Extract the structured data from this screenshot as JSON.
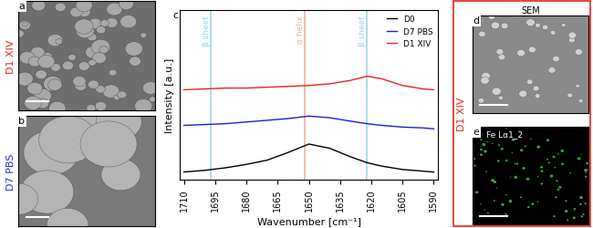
{
  "image_panels": [
    {
      "label": "a",
      "row_label": "D1 XIV",
      "row_label_color": "#e8231f"
    },
    {
      "label": "b",
      "row_label": "D7 PBS",
      "row_label_color": "#2a2ad6"
    }
  ],
  "side_group": {
    "label": "D1 XIV",
    "color": "#e8231f",
    "panels": [
      {
        "label": "d",
        "title": "SEM"
      },
      {
        "label": "e",
        "title": "Fe Lα1_2"
      }
    ]
  },
  "chart_panel_label": "c",
  "chart_data": {
    "type": "line",
    "x_label": "Wavenumber [cm⁻¹]",
    "y_label": "Intensity [a.u.]",
    "x": [
      1710,
      1700,
      1690,
      1680,
      1670,
      1660,
      1650,
      1640,
      1630,
      1622,
      1615,
      1605,
      1595,
      1590
    ],
    "series": [
      {
        "name": "D0",
        "color": "#000000",
        "values": [
          0.45,
          0.55,
          0.7,
          0.9,
          1.15,
          1.6,
          2.1,
          1.85,
          1.35,
          1.0,
          0.8,
          0.6,
          0.5,
          0.45
        ]
      },
      {
        "name": "D7 PBS",
        "color": "#1f1fd0",
        "values": [
          3.2,
          3.25,
          3.3,
          3.4,
          3.5,
          3.6,
          3.75,
          3.65,
          3.45,
          3.3,
          3.2,
          3.1,
          3.05,
          3.0
        ]
      },
      {
        "name": "D1 XIV",
        "color": "#e8231f",
        "values": [
          5.3,
          5.35,
          5.4,
          5.4,
          5.45,
          5.5,
          5.55,
          5.65,
          5.85,
          6.1,
          5.95,
          5.55,
          5.35,
          5.3
        ]
      }
    ],
    "annotations": [
      {
        "text": "β sheet",
        "x": 1697,
        "color": "#9fd3ea"
      },
      {
        "text": "α helix",
        "x": 1652,
        "color": "#e8b4a8"
      },
      {
        "text": "β sheet",
        "x": 1622,
        "color": "#9fd3ea"
      }
    ],
    "xlim": [
      1712,
      1588
    ],
    "ylim": [
      0,
      10
    ],
    "xticks": [
      1710,
      1695,
      1680,
      1665,
      1650,
      1635,
      1620,
      1605,
      1590
    ],
    "tick_labels": "x",
    "legend": "upper right",
    "grid": false
  }
}
